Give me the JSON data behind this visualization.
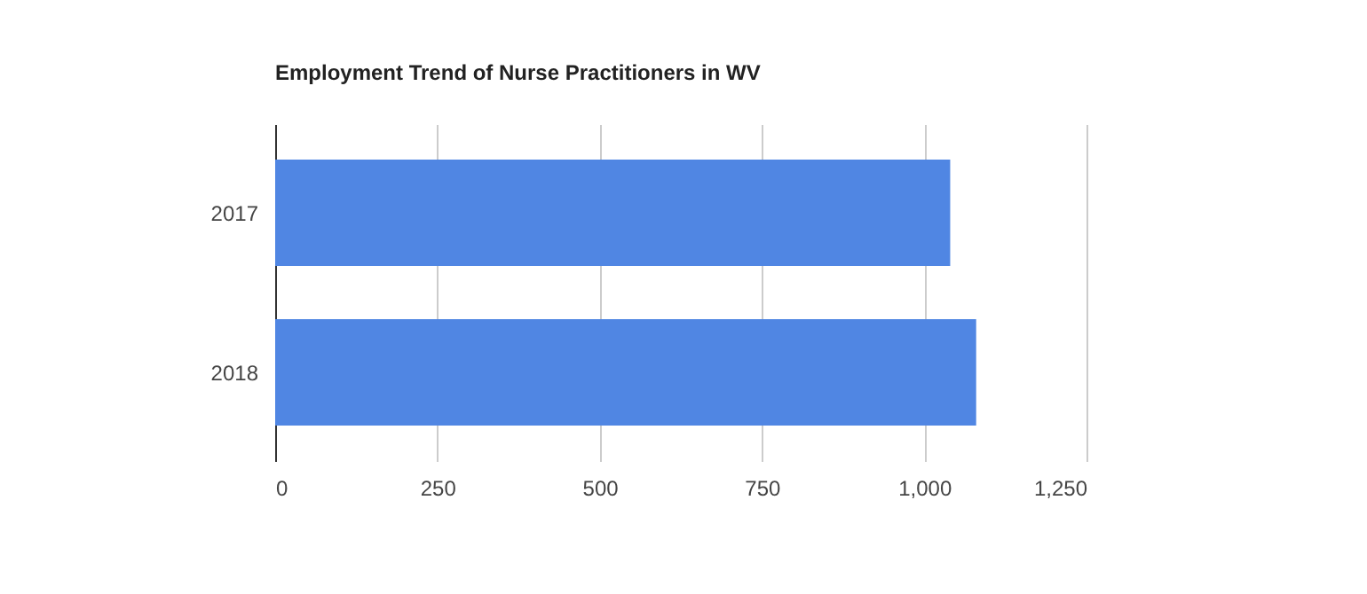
{
  "chart_data": {
    "type": "bar",
    "orientation": "horizontal",
    "title": "Employment Trend of Nurse Practitioners in WV",
    "categories": [
      "2017",
      "2018"
    ],
    "values": [
      1040,
      1080
    ],
    "color": "#5086e3",
    "xlim": [
      0,
      1250
    ],
    "xticks": [
      0,
      {
        "value": 250,
        "label": "250"
      },
      {
        "value": 500,
        "label": "500"
      },
      {
        "value": 750,
        "label": "750"
      },
      {
        "value": 1000,
        "label": "1,000"
      },
      {
        "value": 1250,
        "label": "1,250"
      }
    ],
    "grid": "x"
  }
}
